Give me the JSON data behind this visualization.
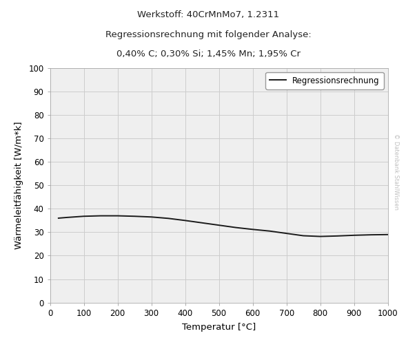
{
  "title_line1": "Werkstoff: 40CrMnMo7, 1.2311",
  "title_line2": "Regressionsrechnung mit folgender Analyse:",
  "title_line3": "0,40% C; 0,30% Si; 1,45% Mn; 1,95% Cr",
  "xlabel": "Temperatur [°C]",
  "ylabel": "Wärmeleitfähigkeit [W/m*k]",
  "legend_label": "Regressionsrechnung",
  "watermark": "© Datenbank StahlWissen",
  "xlim": [
    0,
    1000
  ],
  "ylim": [
    0,
    100
  ],
  "xticks": [
    0,
    100,
    200,
    300,
    400,
    500,
    600,
    700,
    800,
    900,
    1000
  ],
  "yticks": [
    0,
    10,
    20,
    30,
    40,
    50,
    60,
    70,
    80,
    90,
    100
  ],
  "line_color": "#1a1a1a",
  "line_width": 1.4,
  "grid_color": "#cccccc",
  "background_color": "#efefef",
  "fig_background": "#ffffff",
  "title1_fontsize": 9.5,
  "title2_fontsize": 9.5,
  "title3_fontsize": 9.5,
  "tick_fontsize": 8.5,
  "label_fontsize": 9.5,
  "legend_fontsize": 8.5,
  "watermark_fontsize": 6,
  "watermark_color": "#c0c0c0",
  "x_data": [
    25,
    50,
    100,
    150,
    200,
    250,
    300,
    350,
    400,
    450,
    500,
    550,
    600,
    650,
    700,
    750,
    800,
    850,
    900,
    950,
    1000
  ],
  "y_data": [
    36.0,
    36.3,
    36.8,
    37.0,
    37.0,
    36.8,
    36.5,
    35.9,
    35.0,
    34.0,
    33.0,
    32.0,
    31.2,
    30.5,
    29.5,
    28.5,
    28.2,
    28.4,
    28.7,
    28.9,
    29.0
  ]
}
